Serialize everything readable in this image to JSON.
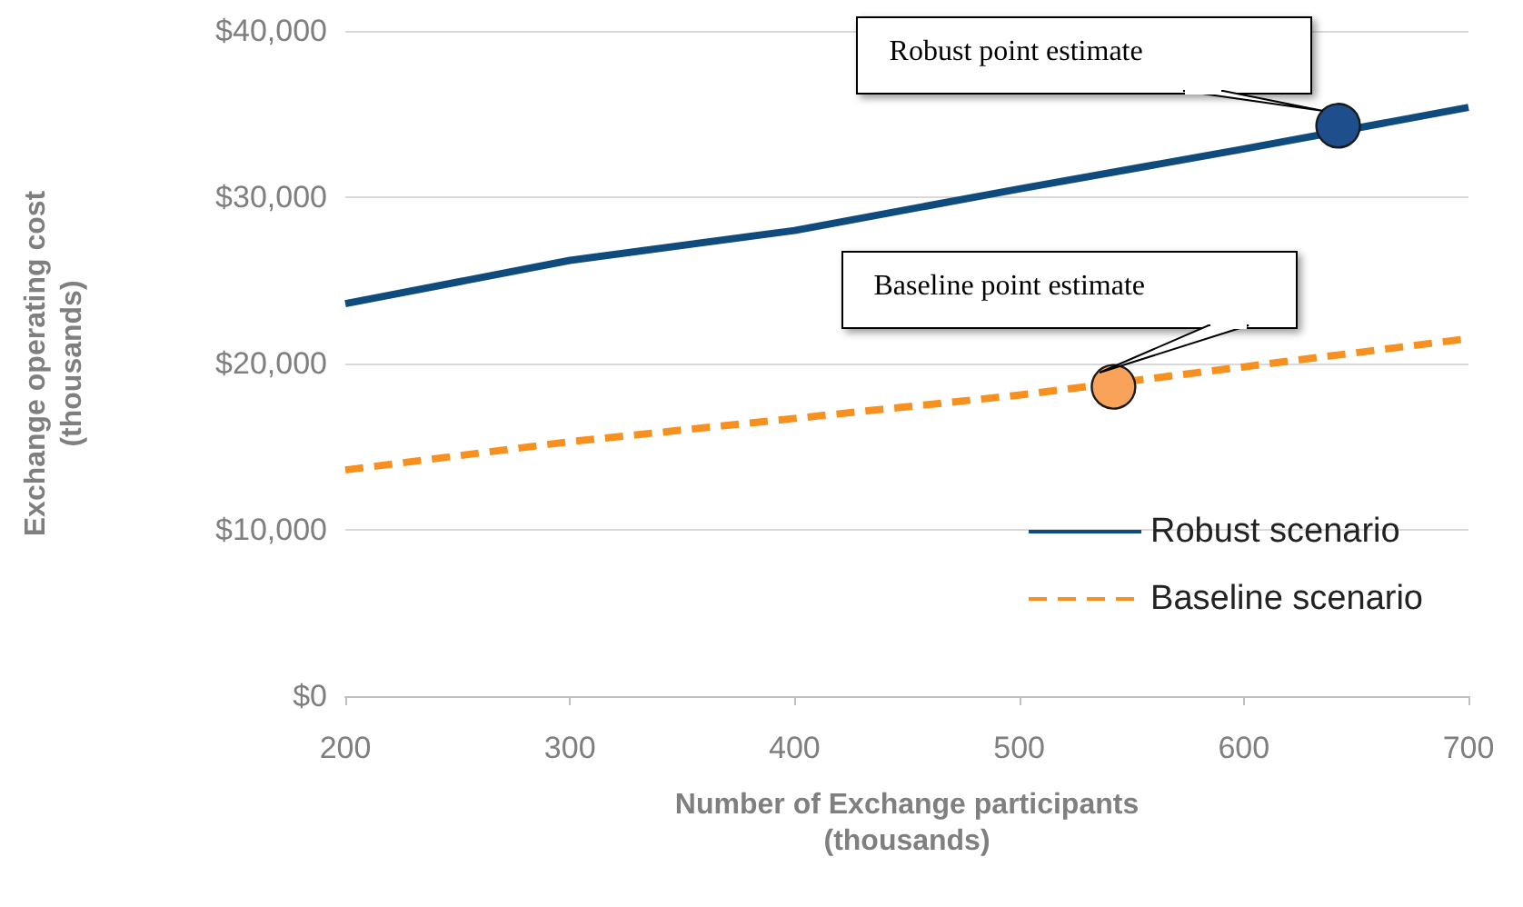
{
  "chart_data": {
    "type": "line",
    "xlabel": "Number of Exchange participants\n(thousands)",
    "ylabel": "Exchange operating cost\n(thousands)",
    "x": [
      200,
      300,
      400,
      500,
      600,
      700
    ],
    "series": [
      {
        "name": "Robust scenario",
        "color": "#0f4c7d",
        "line_style": "solid",
        "marker": "none",
        "values": [
          23600,
          26200,
          28000,
          30500,
          32900,
          35400
        ]
      },
      {
        "name": "Baseline scenario",
        "color": "#f7901e",
        "line_style": "dashed",
        "marker": "none",
        "values": [
          13600,
          15300,
          16700,
          18100,
          19800,
          21500
        ]
      },
      {
        "type": "scatter",
        "color": "#1f4e8c",
        "marker": "circle",
        "x": [
          642
        ],
        "values": [
          34300
        ]
      },
      {
        "type": "scatter",
        "color": "#f9a35a",
        "marker": "circle",
        "x": [
          542
        ],
        "values": [
          18600
        ]
      }
    ],
    "annotations": [
      "Robust point estimate",
      "Baseline point estimate"
    ],
    "xlim": [
      200,
      700
    ],
    "xticks": [
      200,
      300,
      400,
      500,
      600,
      700
    ],
    "ylim": [
      0,
      40000
    ],
    "yticks": [
      {
        "value": 0,
        "label": "$0"
      },
      {
        "value": 10000,
        "label": "$10,000"
      },
      {
        "value": 20000,
        "label": "$20,000"
      },
      {
        "value": 30000,
        "label": "$30,000"
      },
      {
        "value": 40000,
        "label": "$40,000"
      }
    ],
    "grid": "y",
    "legend": "bottom right"
  }
}
